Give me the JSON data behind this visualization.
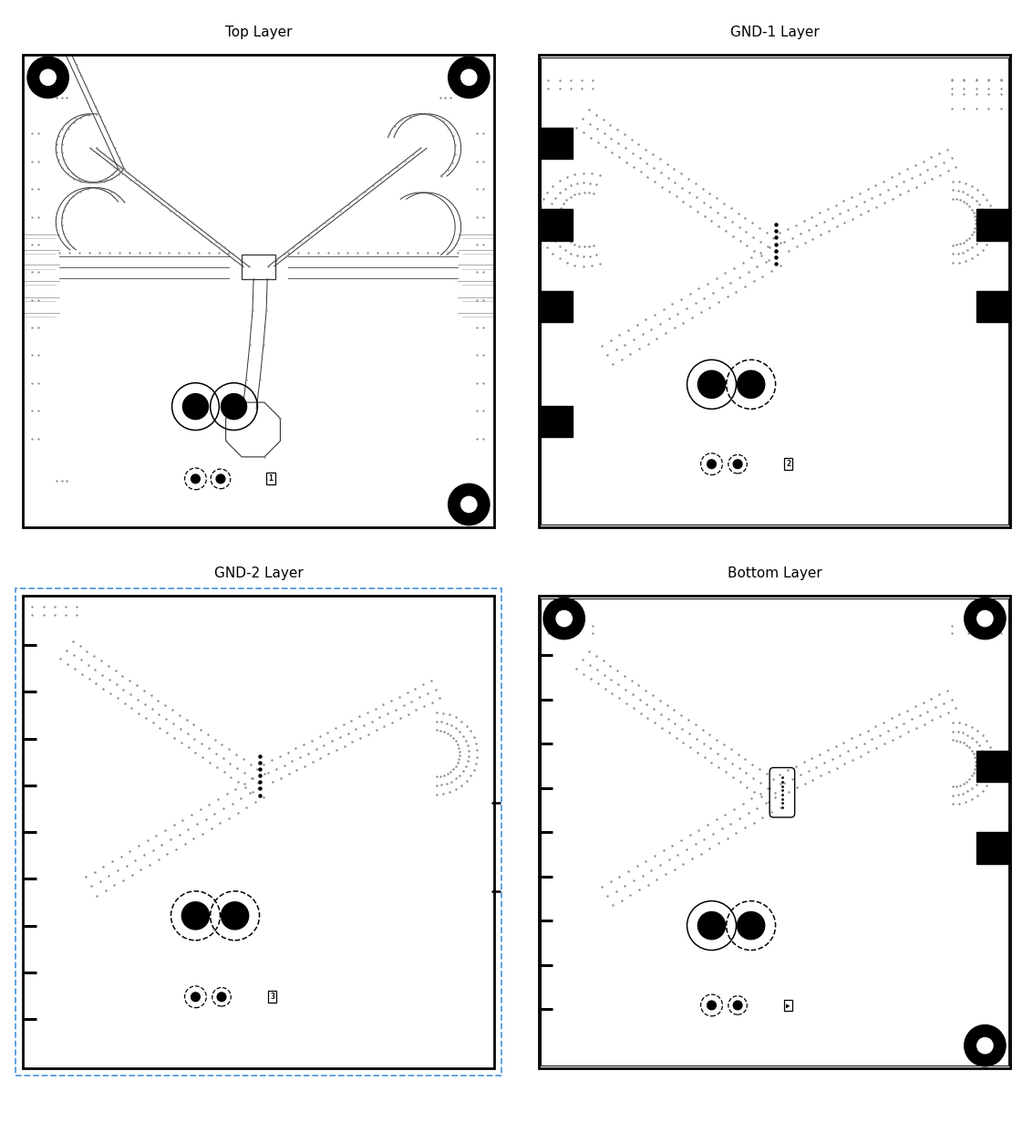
{
  "fig_width": 11.33,
  "fig_height": 12.31,
  "panels": [
    {
      "title": "Top Layer",
      "row": 0,
      "col": 0
    },
    {
      "title": "GND-1 Layer",
      "row": 0,
      "col": 1
    },
    {
      "title": "GND-2 Layer",
      "row": 1,
      "col": 0
    },
    {
      "title": "Bottom Layer",
      "row": 1,
      "col": 1
    }
  ],
  "dot_color": "#888888",
  "dark_color": "#333333",
  "black": "#000000",
  "white": "#ffffff",
  "blue_dash": "#5599DD"
}
